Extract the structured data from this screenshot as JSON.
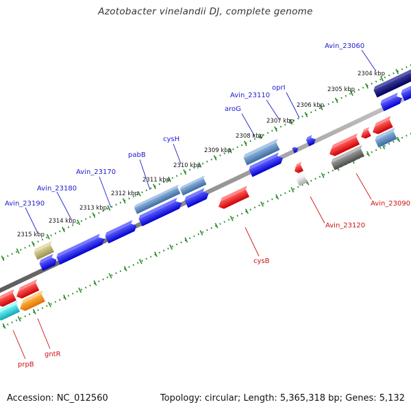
{
  "title": "Azotobacter vinelandii DJ, complete genome",
  "footer": {
    "accession": "Accession: NC_012560",
    "summary": "Topology: circular; Length: 5,365,318 bp; Genes: 5,132"
  },
  "colors": {
    "backbone": "#8a8a8a",
    "tick": "#2a8a2a",
    "label_forward": "#1a1acc",
    "label_reverse": "#cc1111"
  },
  "kbp_labels": [
    "2304 kbp",
    "2305 kbp",
    "2306 kbp",
    "2307 kbp",
    "2308 kbp",
    "2309 kbp",
    "2310 kbp",
    "2311 kbp",
    "2312 kbp",
    "2313 kbp",
    "2314 kbp",
    "2315 kbp"
  ],
  "gene_labels_forward": [
    "Avin_23060",
    "oprI",
    "Avin_23110",
    "aroG",
    "cysH",
    "pabB",
    "Avin_23170",
    "Avin_23180",
    "Avin_23190"
  ],
  "gene_labels_reverse": [
    "Avin_23090",
    "Avin_23120",
    "cysB",
    "gntR",
    "prpB"
  ]
}
